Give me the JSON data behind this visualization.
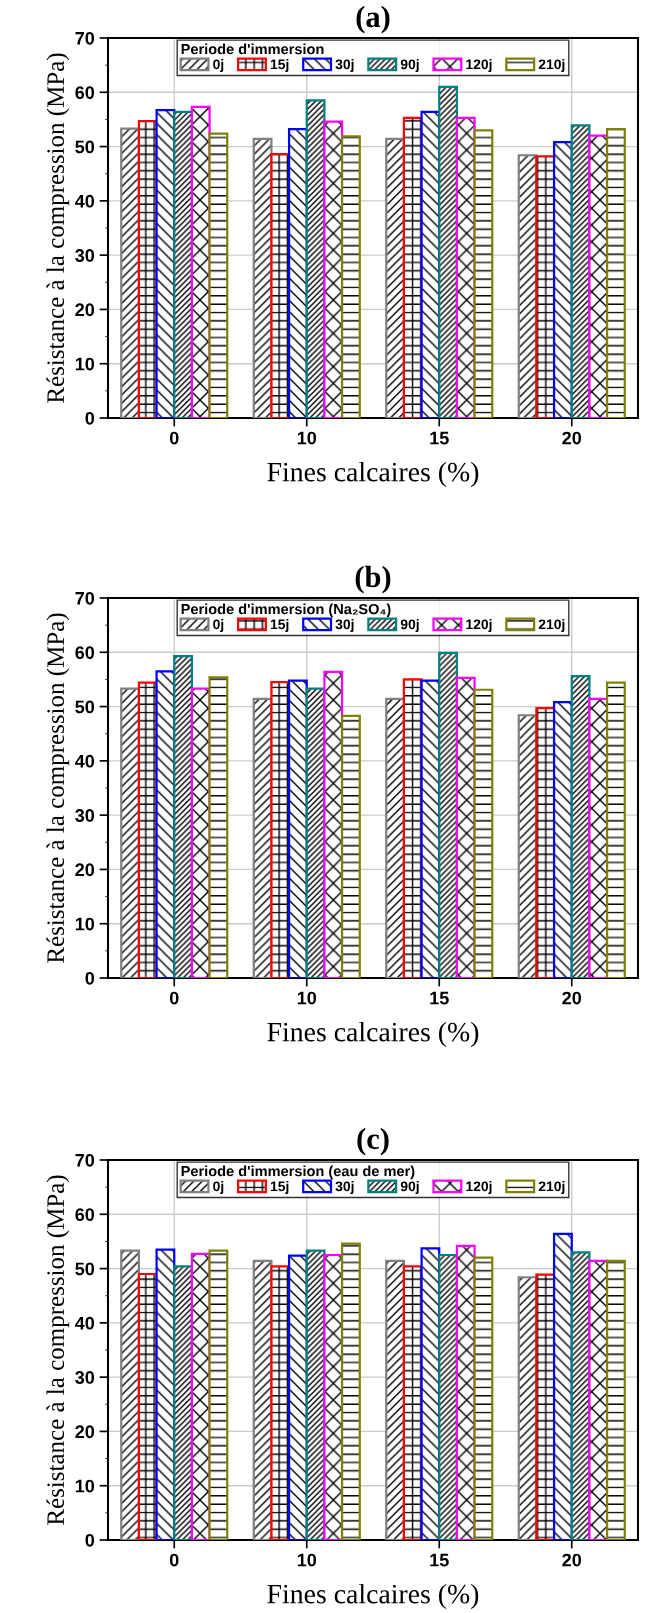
{
  "chart_data": [
    {
      "type": "bar",
      "title": "(a)",
      "xlabel": "Fines calcaires (%)",
      "ylabel": "Résistance à la compression (MPa)",
      "legend_title": "Periode d'immersion",
      "categories": [
        "0",
        "10",
        "15",
        "20"
      ],
      "ylim": [
        0,
        70
      ],
      "yticks": [
        0,
        10,
        20,
        30,
        40,
        50,
        60,
        70
      ],
      "grid": true,
      "legend": "top",
      "series": [
        {
          "name": "0j",
          "color": "#808080",
          "values": [
            53.3,
            51.4,
            51.4,
            48.4
          ]
        },
        {
          "name": "15j",
          "color": "#ff0000",
          "values": [
            54.7,
            48.6,
            55.3,
            48.2
          ]
        },
        {
          "name": "30j",
          "color": "#0000ff",
          "values": [
            56.7,
            53.2,
            56.4,
            50.8
          ]
        },
        {
          "name": "90j",
          "color": "#008080",
          "values": [
            56.4,
            58.5,
            61.0,
            53.9
          ]
        },
        {
          "name": "120j",
          "color": "#ff00ff",
          "values": [
            57.3,
            54.6,
            55.3,
            52.0
          ]
        },
        {
          "name": "210j",
          "color": "#808000",
          "values": [
            52.4,
            51.9,
            53.0,
            53.2
          ]
        }
      ]
    },
    {
      "type": "bar",
      "title": "(b)",
      "xlabel": "Fines calcaires (%)",
      "ylabel": "Résistance à la compression (MPa)",
      "legend_title": "Periode d'immersion (Na₂SO₄)",
      "categories": [
        "0",
        "10",
        "15",
        "20"
      ],
      "ylim": [
        0,
        70
      ],
      "yticks": [
        0,
        10,
        20,
        30,
        40,
        50,
        60,
        70
      ],
      "grid": true,
      "legend": "top",
      "series": [
        {
          "name": "0j",
          "color": "#808080",
          "values": [
            53.3,
            51.4,
            51.4,
            48.4
          ]
        },
        {
          "name": "15j",
          "color": "#ff0000",
          "values": [
            54.4,
            54.5,
            55.0,
            49.7
          ]
        },
        {
          "name": "30j",
          "color": "#0000ff",
          "values": [
            56.5,
            54.8,
            54.8,
            50.8
          ]
        },
        {
          "name": "90j",
          "color": "#008080",
          "values": [
            59.3,
            53.3,
            59.9,
            55.6
          ]
        },
        {
          "name": "120j",
          "color": "#ff00ff",
          "values": [
            53.3,
            56.4,
            55.3,
            51.4
          ]
        },
        {
          "name": "210j",
          "color": "#808000",
          "values": [
            55.4,
            48.3,
            53.1,
            54.4
          ]
        }
      ]
    },
    {
      "type": "bar",
      "title": "(c)",
      "xlabel": "Fines calcaires (%)",
      "ylabel": "Résistance à la compression (MPa)",
      "legend_title": "Periode d'immersion (eau de mer)",
      "categories": [
        "0",
        "10",
        "15",
        "20"
      ],
      "ylim": [
        0,
        70
      ],
      "yticks": [
        0,
        10,
        20,
        30,
        40,
        50,
        60,
        70
      ],
      "grid": true,
      "legend": "top",
      "series": [
        {
          "name": "0j",
          "color": "#808080",
          "values": [
            53.3,
            51.4,
            51.4,
            48.4
          ]
        },
        {
          "name": "15j",
          "color": "#ff0000",
          "values": [
            49.0,
            50.4,
            50.4,
            48.9
          ]
        },
        {
          "name": "30j",
          "color": "#0000ff",
          "values": [
            53.5,
            52.4,
            53.7,
            56.4
          ]
        },
        {
          "name": "90j",
          "color": "#008080",
          "values": [
            50.4,
            53.3,
            52.5,
            53.0
          ]
        },
        {
          "name": "120j",
          "color": "#ff00ff",
          "values": [
            52.7,
            52.5,
            54.2,
            51.4
          ]
        },
        {
          "name": "210j",
          "color": "#808000",
          "values": [
            53.3,
            54.6,
            52.0,
            51.4
          ]
        }
      ]
    }
  ]
}
